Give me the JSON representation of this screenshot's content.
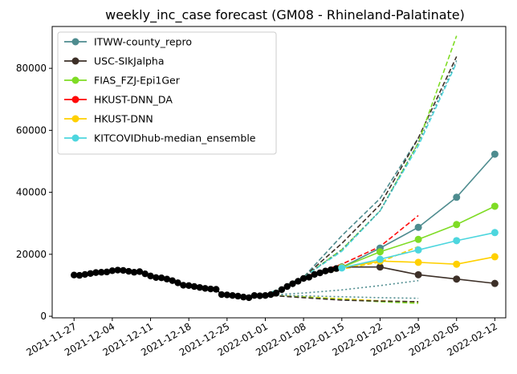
{
  "chart_data": {
    "type": "line",
    "title": "weekly_inc_case forecast (GM08 - Rhineland-Palatinate)",
    "xlabel": "",
    "ylabel": "",
    "x_ticks": [
      "2021-11-27",
      "2021-12-04",
      "2021-12-11",
      "2021-12-18",
      "2021-12-25",
      "2022-01-01",
      "2022-01-08",
      "2022-01-15",
      "2022-01-22",
      "2022-01-29",
      "2022-02-05",
      "2022-02-12"
    ],
    "xlim": [
      "2021-11-23",
      "2022-02-14"
    ],
    "y_ticks": [
      0,
      20000,
      40000,
      60000,
      80000
    ],
    "ylim": [
      -500,
      93500
    ],
    "grid": false,
    "legend_position": "top-left",
    "observed": {
      "color": "#000000",
      "x": [
        "2021-11-27",
        "2021-11-28",
        "2021-11-29",
        "2021-11-30",
        "2021-12-01",
        "2021-12-02",
        "2021-12-03",
        "2021-12-04",
        "2021-12-05",
        "2021-12-06",
        "2021-12-07",
        "2021-12-08",
        "2021-12-09",
        "2021-12-10",
        "2021-12-11",
        "2021-12-12",
        "2021-12-13",
        "2021-12-14",
        "2021-12-15",
        "2021-12-16",
        "2021-12-17",
        "2021-12-18",
        "2021-12-19",
        "2021-12-20",
        "2021-12-21",
        "2021-12-22",
        "2021-12-23",
        "2021-12-24",
        "2021-12-25",
        "2021-12-26",
        "2021-12-27",
        "2021-12-28",
        "2021-12-29",
        "2021-12-30",
        "2021-12-31",
        "2022-01-01",
        "2022-01-02",
        "2022-01-03",
        "2022-01-04",
        "2022-01-05",
        "2022-01-06",
        "2022-01-07",
        "2022-01-08",
        "2022-01-09",
        "2022-01-10",
        "2022-01-11",
        "2022-01-12",
        "2022-01-13",
        "2022-01-14",
        "2022-01-15"
      ],
      "y": [
        13300,
        13200,
        13500,
        13800,
        14100,
        14200,
        14300,
        14700,
        14900,
        14800,
        14500,
        14200,
        14400,
        13700,
        13000,
        12500,
        12400,
        12000,
        11500,
        10800,
        10000,
        9900,
        9600,
        9300,
        9000,
        8800,
        8700,
        7000,
        6900,
        6700,
        6500,
        6200,
        6000,
        6700,
        6600,
        6700,
        7000,
        7500,
        8600,
        9600,
        10500,
        11300,
        12200,
        12600,
        13500,
        14000,
        14600,
        15000,
        15400,
        15600
      ]
    },
    "series": [
      {
        "name": "ITWW-county_repro",
        "color": "#4e8c8f",
        "x": [
          "2022-01-15",
          "2022-01-22",
          "2022-01-29",
          "2022-02-05",
          "2022-02-12"
        ],
        "y": [
          15800,
          22000,
          28700,
          38400,
          52300
        ]
      },
      {
        "name": "USC-SIkJalpha",
        "color": "#3d3028",
        "x": [
          "2022-01-15",
          "2022-01-22",
          "2022-01-29",
          "2022-02-05",
          "2022-02-12"
        ],
        "y": [
          15900,
          15900,
          13400,
          12000,
          10600
        ]
      },
      {
        "name": "FIAS_FZJ-Epi1Ger",
        "color": "#7fdc25",
        "x": [
          "2022-01-15",
          "2022-01-22",
          "2022-01-29",
          "2022-02-05",
          "2022-02-12"
        ],
        "y": [
          15800,
          20800,
          24800,
          29600,
          35500
        ]
      },
      {
        "name": "HKUST-DNN_DA",
        "color": "#ff0a0a",
        "x": [],
        "y": []
      },
      {
        "name": "HKUST-DNN",
        "color": "#ffd000",
        "x": [
          "2022-01-15",
          "2022-01-22",
          "2022-01-29",
          "2022-02-05",
          "2022-02-12"
        ],
        "y": [
          15700,
          17800,
          17400,
          16800,
          19200
        ]
      },
      {
        "name": "KITCOVIDhub-median_ensemble",
        "color": "#4dd6de",
        "x": [
          "2022-01-15",
          "2022-01-22",
          "2022-01-29",
          "2022-02-05",
          "2022-02-12"
        ],
        "y": [
          15600,
          18400,
          21400,
          24400,
          27000
        ]
      }
    ],
    "forecast_lines": [
      {
        "color": "#4e8c8f",
        "dash": "dashed",
        "x": [
          "2022-01-01",
          "2022-01-08",
          "2022-01-15",
          "2022-01-22",
          "2022-01-29"
        ],
        "y": [
          6800,
          12600,
          26000,
          38000,
          57500
        ]
      },
      {
        "color": "#4e8c8f",
        "dash": "dotted",
        "x": [
          "2022-01-01",
          "2022-01-08",
          "2022-01-15",
          "2022-01-22",
          "2022-01-29"
        ],
        "y": [
          6800,
          7500,
          8500,
          9900,
          11500
        ]
      },
      {
        "color": "#3d3028",
        "dash": "dashed",
        "x": [
          "2022-01-01",
          "2022-01-08",
          "2022-01-15",
          "2022-01-22",
          "2022-01-29",
          "2022-02-05"
        ],
        "y": [
          6800,
          12600,
          23500,
          36000,
          57500,
          83800
        ]
      },
      {
        "color": "#7fdc25",
        "dash": "dashed",
        "x": [
          "2022-01-01",
          "2022-01-08",
          "2022-01-15",
          "2022-01-22",
          "2022-01-29",
          "2022-02-05"
        ],
        "y": [
          6800,
          12600,
          21500,
          34000,
          56000,
          90500
        ]
      },
      {
        "color": "#4dd6de",
        "dash": "dashed",
        "x": [
          "2022-01-01",
          "2022-01-08",
          "2022-01-15",
          "2022-01-22",
          "2022-01-29",
          "2022-02-05"
        ],
        "y": [
          6800,
          12600,
          21000,
          34000,
          55000,
          81800
        ]
      },
      {
        "color": "#4e8c8f",
        "dash": "dotted",
        "x": [
          "2022-01-08",
          "2022-01-15",
          "2022-01-22",
          "2022-01-29",
          "2022-02-05"
        ],
        "y": [
          12600,
          21500,
          34000,
          56000,
          82500
        ]
      },
      {
        "color": "#ff0a0a",
        "dash": "dashed",
        "x": [
          "2022-01-08",
          "2022-01-15",
          "2022-01-22",
          "2022-01-29"
        ],
        "y": [
          12600,
          16800,
          22500,
          32500
        ]
      },
      {
        "color": "#ffd000",
        "dash": "dashed",
        "x": [
          "2022-01-08",
          "2022-01-15",
          "2022-01-22",
          "2022-01-29"
        ],
        "y": [
          12600,
          15200,
          17500,
          22500
        ]
      },
      {
        "color": "#ffd000",
        "dash": "dashed",
        "x": [
          "2022-01-01",
          "2022-01-08",
          "2022-01-15",
          "2022-01-22",
          "2022-01-29"
        ],
        "y": [
          6800,
          6300,
          5600,
          5000,
          4600
        ]
      },
      {
        "color": "#7fdc25",
        "dash": "dashed",
        "x": [
          "2022-01-01",
          "2022-01-08",
          "2022-01-15",
          "2022-01-22",
          "2022-01-29"
        ],
        "y": [
          6800,
          6200,
          5400,
          4700,
          4200
        ]
      },
      {
        "color": "#4e8c8f",
        "dash": "dotted",
        "x": [
          "2022-01-01",
          "2022-01-08",
          "2022-01-15",
          "2022-01-22",
          "2022-01-29"
        ],
        "y": [
          6800,
          6600,
          6300,
          6000,
          5800
        ]
      },
      {
        "color": "#3d3028",
        "dash": "dashed",
        "x": [
          "2022-01-01",
          "2022-01-08",
          "2022-01-15",
          "2022-01-22",
          "2022-01-29"
        ],
        "y": [
          6800,
          6000,
          5200,
          4900,
          4700
        ]
      }
    ]
  }
}
